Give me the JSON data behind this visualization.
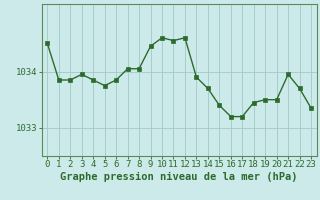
{
  "x": [
    0,
    1,
    2,
    3,
    4,
    5,
    6,
    7,
    8,
    9,
    10,
    11,
    12,
    13,
    14,
    15,
    16,
    17,
    18,
    19,
    20,
    21,
    22,
    23
  ],
  "y": [
    1034.5,
    1033.85,
    1033.85,
    1033.95,
    1033.85,
    1033.75,
    1033.85,
    1034.05,
    1034.05,
    1034.45,
    1034.6,
    1034.55,
    1034.6,
    1033.9,
    1033.7,
    1033.4,
    1033.2,
    1033.2,
    1033.45,
    1033.5,
    1033.5,
    1033.95,
    1033.7,
    1033.35
  ],
  "line_color": "#2d6b2d",
  "marker_color": "#2d6b2d",
  "bg_color": "#cdeaea",
  "grid_color": "#a0c8c8",
  "axis_color": "#2d6b2d",
  "border_color": "#5a8a5a",
  "xlabel": "Graphe pression niveau de la mer (hPa)",
  "yticks": [
    1033,
    1034
  ],
  "ylim": [
    1032.5,
    1035.2
  ],
  "xlim": [
    -0.5,
    23.5
  ],
  "tick_fontsize": 6.5,
  "label_fontsize": 7.5
}
